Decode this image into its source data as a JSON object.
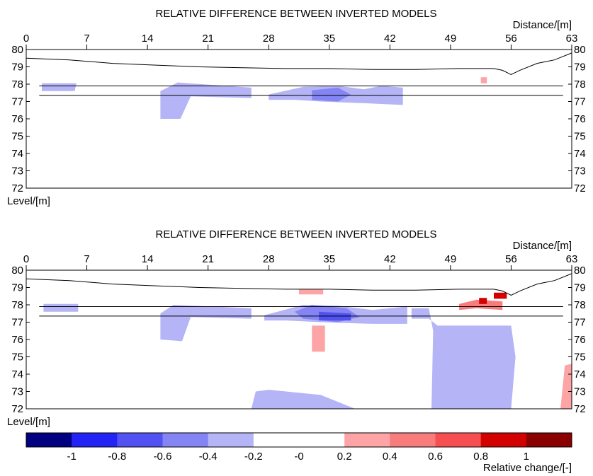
{
  "chart_data": [
    {
      "type": "heatmap",
      "title": "RELATIVE DIFFERENCE BETWEEN INVERTED MODELS",
      "xlabel": "Distance/[m]",
      "ylabel": "Level/[m]",
      "xlim": [
        0,
        63
      ],
      "ylim": [
        72,
        80
      ],
      "x_ticks": [
        "0",
        "7",
        "14",
        "21",
        "28",
        "35",
        "42",
        "49",
        "56",
        "63"
      ],
      "y_ticks": [
        "80",
        "79",
        "78",
        "77",
        "76",
        "75",
        "74",
        "73",
        "72"
      ],
      "surface": [
        [
          0,
          79.5
        ],
        [
          5,
          79.4
        ],
        [
          10,
          79.2
        ],
        [
          15,
          79.1
        ],
        [
          20,
          79.0
        ],
        [
          25,
          78.95
        ],
        [
          30,
          78.9
        ],
        [
          35,
          78.9
        ],
        [
          40,
          78.85
        ],
        [
          45,
          78.85
        ],
        [
          50,
          78.9
        ],
        [
          54,
          78.9
        ],
        [
          55,
          78.8
        ],
        [
          56,
          78.55
        ],
        [
          57,
          78.8
        ],
        [
          59,
          79.2
        ],
        [
          61,
          79.4
        ],
        [
          63,
          79.8
        ]
      ],
      "horizon_lines": [
        77.9,
        77.35
      ],
      "anomalies": [
        {
          "value": -0.3,
          "points": [
            [
              1.8,
              78.05
            ],
            [
              5.8,
              78.05
            ],
            [
              5.6,
              77.6
            ],
            [
              1.8,
              77.6
            ]
          ]
        },
        {
          "value": -0.3,
          "points": [
            [
              15.5,
              77.6
            ],
            [
              17.5,
              78.1
            ],
            [
              26,
              77.8
            ],
            [
              26,
              77.2
            ],
            [
              19,
              77.3
            ],
            [
              17.8,
              76.0
            ],
            [
              15.5,
              76.0
            ]
          ]
        },
        {
          "value": -0.3,
          "points": [
            [
              28,
              77.4
            ],
            [
              32,
              77.85
            ],
            [
              36,
              77.9
            ],
            [
              39,
              77.7
            ],
            [
              41,
              77.9
            ],
            [
              43.5,
              77.8
            ],
            [
              43.5,
              76.8
            ],
            [
              39,
              76.9
            ],
            [
              34,
              77.0
            ],
            [
              31,
              77.1
            ],
            [
              28,
              77.1
            ]
          ]
        },
        {
          "value": -0.5,
          "points": [
            [
              33,
              77.65
            ],
            [
              36,
              77.8
            ],
            [
              37.5,
              77.4
            ],
            [
              36,
              77.0
            ],
            [
              33,
              77.1
            ]
          ]
        },
        {
          "value": 0.3,
          "points": [
            [
              52.5,
              78.4
            ],
            [
              53.2,
              78.4
            ],
            [
              53.2,
              78.05
            ],
            [
              52.5,
              78.05
            ]
          ]
        }
      ]
    },
    {
      "type": "heatmap",
      "title": "RELATIVE DIFFERENCE BETWEEN INVERTED MODELS",
      "xlabel": "Distance/[m]",
      "ylabel": "Level/[m]",
      "xlim": [
        0,
        63
      ],
      "ylim": [
        72,
        80
      ],
      "x_ticks": [
        "0",
        "7",
        "14",
        "21",
        "28",
        "35",
        "42",
        "49",
        "56",
        "63"
      ],
      "y_ticks": [
        "80",
        "79",
        "78",
        "77",
        "76",
        "75",
        "74",
        "73",
        "72"
      ],
      "surface": [
        [
          0,
          79.5
        ],
        [
          5,
          79.4
        ],
        [
          10,
          79.2
        ],
        [
          15,
          79.1
        ],
        [
          20,
          79.0
        ],
        [
          25,
          78.95
        ],
        [
          30,
          78.9
        ],
        [
          35,
          78.9
        ],
        [
          40,
          78.85
        ],
        [
          45,
          78.85
        ],
        [
          50,
          78.9
        ],
        [
          54,
          78.9
        ],
        [
          55,
          78.8
        ],
        [
          56,
          78.55
        ],
        [
          57,
          78.8
        ],
        [
          59,
          79.2
        ],
        [
          61,
          79.4
        ],
        [
          63,
          79.8
        ]
      ],
      "horizon_lines": [
        77.9,
        77.35
      ],
      "anomalies": [
        {
          "value": -0.3,
          "points": [
            [
              2,
              78.05
            ],
            [
              6,
              78.05
            ],
            [
              6,
              77.6
            ],
            [
              2,
              77.6
            ]
          ]
        },
        {
          "value": -0.3,
          "points": [
            [
              15.5,
              77.5
            ],
            [
              17,
              78.0
            ],
            [
              26,
              77.8
            ],
            [
              26,
              77.2
            ],
            [
              19,
              77.3
            ],
            [
              18,
              75.9
            ],
            [
              15.5,
              76.0
            ]
          ]
        },
        {
          "value": -0.3,
          "points": [
            [
              27.5,
              77.4
            ],
            [
              32,
              78.0
            ],
            [
              36,
              77.95
            ],
            [
              40,
              77.7
            ],
            [
              44,
              77.9
            ],
            [
              44,
              76.9
            ],
            [
              40,
              76.9
            ],
            [
              34,
              77.0
            ],
            [
              30,
              77.1
            ],
            [
              27.5,
              77.1
            ]
          ]
        },
        {
          "value": -0.5,
          "points": [
            [
              31,
              77.6
            ],
            [
              33,
              78.0
            ],
            [
              37,
              77.8
            ],
            [
              38.5,
              77.3
            ],
            [
              36,
              77.0
            ],
            [
              32,
              77.2
            ]
          ]
        },
        {
          "value": -0.7,
          "points": [
            [
              33.8,
              77.6
            ],
            [
              37.5,
              77.5
            ],
            [
              37.5,
              77.1
            ],
            [
              33.8,
              77.1
            ]
          ]
        },
        {
          "value": -0.3,
          "points": [
            [
              44.5,
              77.8
            ],
            [
              46.5,
              77.8
            ],
            [
              47,
              76.5
            ],
            [
              46.8,
              72
            ],
            [
              56,
              72
            ],
            [
              56.5,
              75
            ],
            [
              56,
              76.8
            ],
            [
              47.5,
              76.8
            ],
            [
              46.5,
              77.2
            ],
            [
              44.5,
              77.2
            ]
          ]
        },
        {
          "value": -0.3,
          "points": [
            [
              26,
              72
            ],
            [
              38,
              72
            ],
            [
              34,
              72.8
            ],
            [
              28,
              73.1
            ],
            [
              26.5,
              73.0
            ]
          ]
        },
        {
          "value": 0.3,
          "points": [
            [
              33,
              76.8
            ],
            [
              34.5,
              76.8
            ],
            [
              34.5,
              75.3
            ],
            [
              33,
              75.3
            ]
          ]
        },
        {
          "value": 0.3,
          "points": [
            [
              31.5,
              78.6
            ],
            [
              34.3,
              78.6
            ],
            [
              34.3,
              78.9
            ],
            [
              31.5,
              78.9
            ]
          ]
        },
        {
          "value": 0.3,
          "points": [
            [
              61.7,
              72
            ],
            [
              63,
              72
            ],
            [
              63,
              74.6
            ],
            [
              62.2,
              74.5
            ]
          ]
        },
        {
          "value": 0.5,
          "points": [
            [
              50,
              78.05
            ],
            [
              52,
              78.3
            ],
            [
              55,
              78.2
            ],
            [
              55,
              77.7
            ],
            [
              52,
              77.8
            ],
            [
              50,
              77.7
            ]
          ]
        },
        {
          "value": 0.9,
          "points": [
            [
              52.3,
              78.4
            ],
            [
              53.2,
              78.4
            ],
            [
              53.2,
              78.05
            ],
            [
              52.3,
              78.05
            ]
          ]
        },
        {
          "value": 0.9,
          "points": [
            [
              54,
              78.7
            ],
            [
              55.5,
              78.7
            ],
            [
              55.5,
              78.35
            ],
            [
              54,
              78.35
            ]
          ]
        }
      ]
    }
  ],
  "colorbar": {
    "label": "Relative change/[-]",
    "colors": [
      "#000080",
      "#2323f5",
      "#5252f2",
      "#8484f5",
      "#b4b4f7",
      "#ffffff",
      "#ffffff",
      "#fca4a6",
      "#f97c7d",
      "#f74f51",
      "#d30000",
      "#8a0000"
    ],
    "tick_labels": [
      "-1",
      "-0.8",
      "-0.6",
      "-0.4",
      "-0.2",
      "-0",
      "0.2",
      "0.4",
      "0.6",
      "0.8",
      "1"
    ]
  }
}
